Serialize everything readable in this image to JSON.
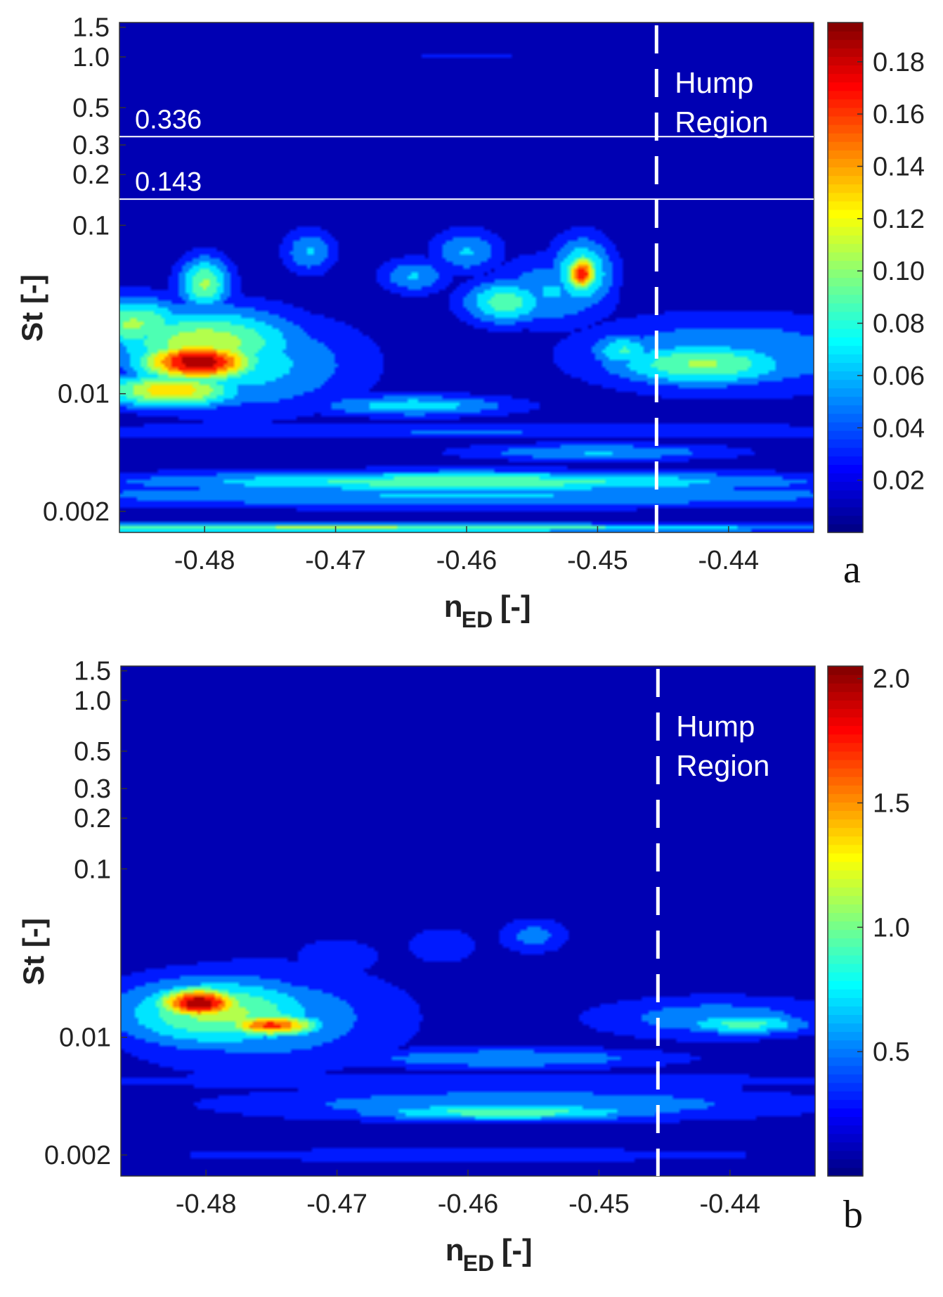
{
  "chart_data": [
    {
      "panel": "a",
      "type": "heatmap",
      "title": "",
      "xlabel": "n",
      "xlabel_sub": "ED",
      "xlabel_unit": "[-]",
      "ylabel": "St [-]",
      "xlim": [
        -0.4865,
        -0.4335
      ],
      "x_ticks": [
        -0.48,
        -0.47,
        -0.46,
        -0.45,
        -0.44
      ],
      "x_tick_labels": [
        "-0.48",
        "-0.47",
        "-0.46",
        "-0.45",
        "-0.44"
      ],
      "y_scale": "log",
      "ylim": [
        0.0015,
        1.6
      ],
      "y_ticks": [
        0.002,
        0.01,
        0.1,
        0.2,
        0.3,
        0.5,
        1.0,
        1.5
      ],
      "y_tick_labels": [
        "0.002",
        "0.01",
        "0.1",
        "0.2",
        "0.3",
        "0.5",
        "1.0",
        "1.5"
      ],
      "colorbar": {
        "min": 0.0,
        "max": 0.195,
        "ticks": [
          0.02,
          0.04,
          0.06,
          0.08,
          0.1,
          0.12,
          0.14,
          0.16,
          0.18
        ],
        "tick_labels": [
          "0.02",
          "0.04",
          "0.06",
          "0.08",
          "0.10",
          "0.12",
          "0.14",
          "0.16",
          "0.18"
        ],
        "colormap": "jet"
      },
      "reference_lines": [
        {
          "St": 0.336,
          "label": "0.336"
        },
        {
          "St": 0.143,
          "label": "0.143"
        }
      ],
      "hump_boundary_x": -0.4455,
      "annotation": [
        "Hump",
        "Region"
      ],
      "panel_label": "a",
      "blobs": [
        {
          "x": -0.4805,
          "st": 0.0155,
          "rx": 0.0034,
          "ry": 0.09,
          "v": 0.19
        },
        {
          "x": -0.48,
          "st": 0.02,
          "rx": 0.0055,
          "ry": 0.16,
          "v": 0.11
        },
        {
          "x": -0.4825,
          "st": 0.0105,
          "rx": 0.004,
          "ry": 0.08,
          "v": 0.13
        },
        {
          "x": -0.4775,
          "st": 0.015,
          "rx": 0.007,
          "ry": 0.22,
          "v": 0.07
        },
        {
          "x": -0.4855,
          "st": 0.026,
          "rx": 0.0035,
          "ry": 0.12,
          "v": 0.1
        },
        {
          "x": -0.48,
          "st": 0.045,
          "rx": 0.0015,
          "ry": 0.12,
          "v": 0.1
        },
        {
          "x": -0.4512,
          "st": 0.052,
          "rx": 0.0009,
          "ry": 0.08,
          "v": 0.17
        },
        {
          "x": -0.4512,
          "st": 0.052,
          "rx": 0.0018,
          "ry": 0.16,
          "v": 0.09
        },
        {
          "x": -0.457,
          "st": 0.035,
          "rx": 0.0025,
          "ry": 0.1,
          "v": 0.09
        },
        {
          "x": -0.4535,
          "st": 0.04,
          "rx": 0.0035,
          "ry": 0.16,
          "v": 0.06
        },
        {
          "x": -0.448,
          "st": 0.018,
          "rx": 0.002,
          "ry": 0.08,
          "v": 0.08
        },
        {
          "x": -0.442,
          "st": 0.015,
          "rx": 0.0055,
          "ry": 0.1,
          "v": 0.1
        },
        {
          "x": -0.44,
          "st": 0.017,
          "rx": 0.009,
          "ry": 0.18,
          "v": 0.06
        },
        {
          "x": -0.464,
          "st": 0.05,
          "rx": 0.002,
          "ry": 0.08,
          "v": 0.06
        },
        {
          "x": -0.472,
          "st": 0.07,
          "rx": 0.0015,
          "ry": 0.1,
          "v": 0.06
        },
        {
          "x": -0.46,
          "st": 0.07,
          "rx": 0.002,
          "ry": 0.1,
          "v": 0.06
        },
        {
          "x": -0.464,
          "st": 0.0085,
          "rx": 0.006,
          "ry": 0.05,
          "v": 0.07
        },
        {
          "x": -0.46,
          "st": 0.003,
          "rx": 0.02,
          "ry": 0.05,
          "v": 0.09
        },
        {
          "x": -0.46,
          "st": 0.0025,
          "rx": 0.03,
          "ry": 0.06,
          "v": 0.06
        },
        {
          "x": -0.45,
          "st": 0.0045,
          "rx": 0.008,
          "ry": 0.04,
          "v": 0.06
        },
        {
          "x": -0.47,
          "st": 0.0016,
          "rx": 0.03,
          "ry": 0.02,
          "v": 0.1
        },
        {
          "x": -0.46,
          "st": 0.006,
          "rx": 0.03,
          "ry": 0.04,
          "v": 0.04
        },
        {
          "x": -0.46,
          "st": 1.0,
          "rx": 0.03,
          "ry": 0.03,
          "v": 0.02
        }
      ]
    },
    {
      "panel": "b",
      "type": "heatmap",
      "title": "",
      "xlabel": "n",
      "xlabel_sub": "ED",
      "xlabel_unit": "[-]",
      "ylabel": "St [-]",
      "xlim": [
        -0.4865,
        -0.4335
      ],
      "x_ticks": [
        -0.48,
        -0.47,
        -0.46,
        -0.45,
        -0.44
      ],
      "x_tick_labels": [
        "-0.48",
        "-0.47",
        "-0.46",
        "-0.45",
        "-0.44"
      ],
      "y_scale": "log",
      "ylim": [
        0.0015,
        1.6
      ],
      "y_ticks": [
        0.002,
        0.01,
        0.1,
        0.2,
        0.3,
        0.5,
        1.0,
        1.5
      ],
      "y_tick_labels": [
        "0.002",
        "0.01",
        "0.1",
        "0.2",
        "0.3",
        "0.5",
        "1.0",
        "1.5"
      ],
      "colorbar": {
        "min": 0.0,
        "max": 2.05,
        "ticks": [
          0.5,
          1.0,
          1.5,
          2.0
        ],
        "tick_labels": [
          "0.5",
          "1.0",
          "1.5",
          "2.0"
        ],
        "colormap": "jet"
      },
      "reference_lines": [],
      "hump_boundary_x": -0.4455,
      "annotation": [
        "Hump",
        "Region"
      ],
      "panel_label": "b",
      "blobs": [
        {
          "x": -0.4805,
          "st": 0.016,
          "rx": 0.0025,
          "ry": 0.07,
          "v": 2.0
        },
        {
          "x": -0.475,
          "st": 0.0118,
          "rx": 0.0028,
          "ry": 0.05,
          "v": 1.7
        },
        {
          "x": -0.479,
          "st": 0.014,
          "rx": 0.006,
          "ry": 0.16,
          "v": 1.1
        },
        {
          "x": -0.476,
          "st": 0.013,
          "rx": 0.0085,
          "ry": 0.24,
          "v": 0.6
        },
        {
          "x": -0.457,
          "st": 0.0036,
          "rx": 0.009,
          "ry": 0.04,
          "v": 0.95
        },
        {
          "x": -0.456,
          "st": 0.004,
          "rx": 0.017,
          "ry": 0.08,
          "v": 0.6
        },
        {
          "x": -0.457,
          "st": 0.0075,
          "rx": 0.01,
          "ry": 0.05,
          "v": 0.6
        },
        {
          "x": -0.439,
          "st": 0.012,
          "rx": 0.004,
          "ry": 0.05,
          "v": 0.9
        },
        {
          "x": -0.441,
          "st": 0.013,
          "rx": 0.0075,
          "ry": 0.1,
          "v": 0.55
        },
        {
          "x": -0.47,
          "st": 0.03,
          "rx": 0.003,
          "ry": 0.1,
          "v": 0.35
        },
        {
          "x": -0.462,
          "st": 0.035,
          "rx": 0.0025,
          "ry": 0.1,
          "v": 0.35
        },
        {
          "x": -0.455,
          "st": 0.04,
          "rx": 0.002,
          "ry": 0.08,
          "v": 0.5
        },
        {
          "x": -0.46,
          "st": 0.002,
          "rx": 0.035,
          "ry": 0.06,
          "v": 0.25
        },
        {
          "x": -0.46,
          "st": 0.0055,
          "rx": 0.035,
          "ry": 0.05,
          "v": 0.3
        },
        {
          "x": -0.46,
          "st": 0.08,
          "rx": 0.025,
          "ry": 0.25,
          "v": 0.18
        }
      ]
    }
  ]
}
